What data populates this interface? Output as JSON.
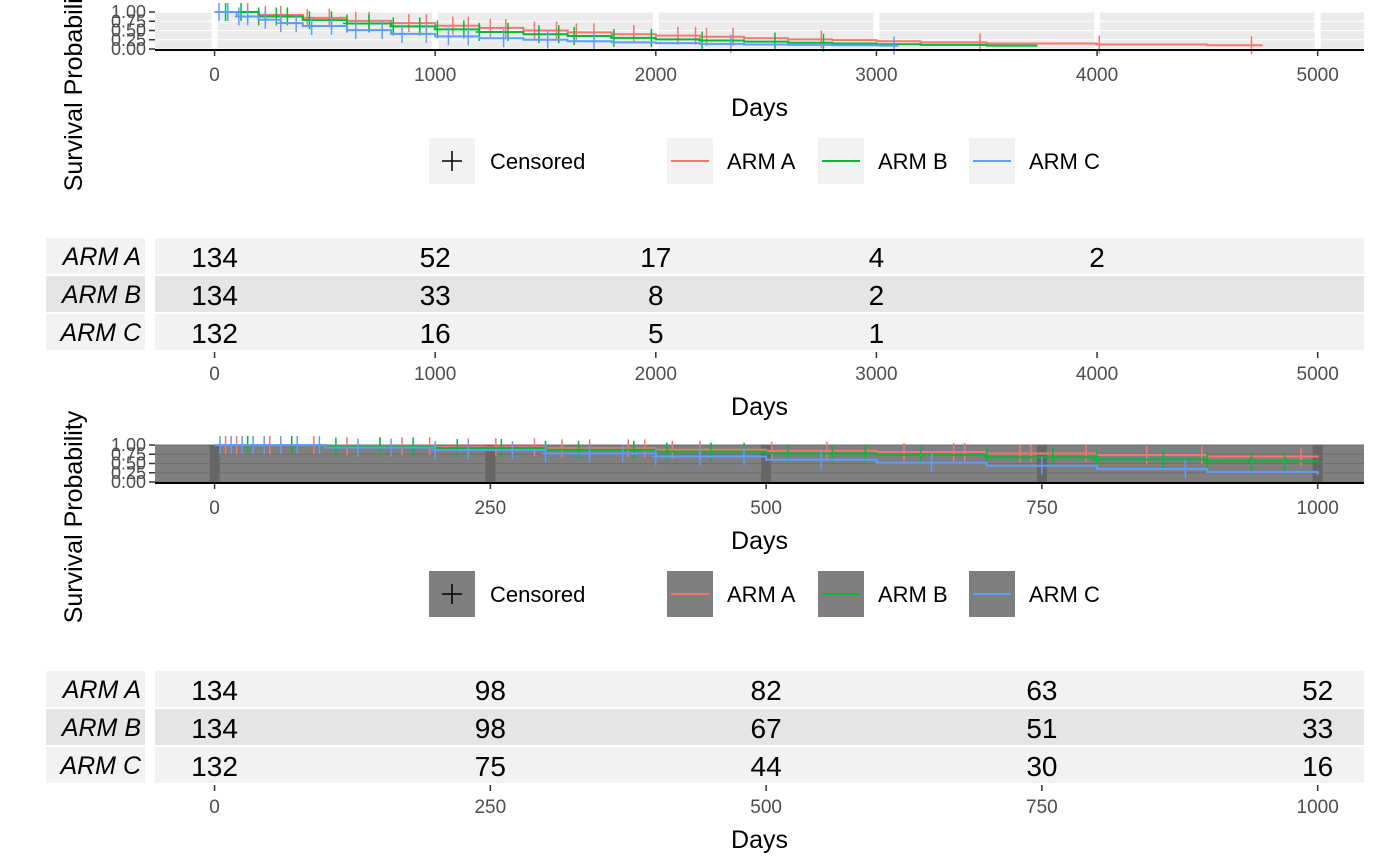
{
  "chart_data": [
    {
      "type": "line",
      "subtype": "kaplan-meier",
      "title": "",
      "xlabel": "Days",
      "ylabel": "Survival Probability",
      "xlim": [
        -270,
        5210
      ],
      "ylim": [
        0,
        1
      ],
      "xticks": [
        0,
        1000,
        2000,
        3000,
        4000,
        5000
      ],
      "yticks": [
        "0.00",
        "0.25",
        "0.50",
        "0.75",
        "1.00"
      ],
      "theme": "light",
      "grid": true,
      "legend": {
        "position": "bottom",
        "censored_label": "Censored",
        "censored_symbol": "+",
        "entries": [
          "ARM A",
          "ARM B",
          "ARM C"
        ]
      },
      "series": [
        {
          "name": "ARM A",
          "color": "#F8766D",
          "x": [
            0,
            200,
            400,
            600,
            800,
            1000,
            1200,
            1400,
            1600,
            1800,
            2000,
            2200,
            2400,
            2600,
            2800,
            3000,
            3200,
            3500,
            4000,
            4500,
            4750
          ],
          "y": [
            1.0,
            0.92,
            0.84,
            0.76,
            0.7,
            0.63,
            0.57,
            0.5,
            0.45,
            0.4,
            0.36,
            0.33,
            0.29,
            0.26,
            0.24,
            0.21,
            0.18,
            0.15,
            0.12,
            0.1,
            0.1
          ],
          "censored_x": [
            150,
            230,
            300,
            420,
            520,
            640,
            700,
            880,
            960,
            1080,
            1150,
            1250,
            1320,
            1450,
            1550,
            1640,
            1720,
            1900,
            2100,
            2180,
            2230,
            2350,
            2750,
            3470,
            4010,
            4700
          ]
        },
        {
          "name": "ARM B",
          "color": "#00BA38",
          "x": [
            0,
            200,
            400,
            600,
            800,
            1000,
            1200,
            1400,
            1600,
            1800,
            2000,
            2200,
            2400,
            2600,
            2800,
            3000,
            3200,
            3500,
            3730
          ],
          "y": [
            1.0,
            0.88,
            0.78,
            0.69,
            0.61,
            0.53,
            0.46,
            0.4,
            0.35,
            0.3,
            0.26,
            0.23,
            0.2,
            0.17,
            0.15,
            0.13,
            0.11,
            0.09,
            0.09
          ],
          "censored_x": [
            50,
            120,
            200,
            280,
            330,
            430,
            530,
            600,
            700,
            810,
            930,
            1010,
            1130,
            1200,
            1330,
            1470,
            1560,
            1630,
            1810,
            1980,
            2210,
            2540,
            2760
          ]
        },
        {
          "name": "ARM C",
          "color": "#619CFF",
          "x": [
            0,
            100,
            200,
            300,
            400,
            600,
            800,
            1000,
            1200,
            1400,
            1600,
            1800,
            2000,
            2200,
            2400,
            2600,
            2800,
            3000,
            3100
          ],
          "y": [
            1.0,
            0.88,
            0.79,
            0.7,
            0.62,
            0.51,
            0.41,
            0.34,
            0.29,
            0.25,
            0.21,
            0.18,
            0.16,
            0.14,
            0.12,
            0.11,
            0.1,
            0.09,
            0.09
          ],
          "censored_x": [
            20,
            60,
            110,
            150,
            230,
            300,
            370,
            440,
            530,
            640,
            760,
            850,
            960,
            1060,
            1150,
            1310,
            1510,
            1720,
            2340,
            3080
          ]
        }
      ]
    },
    {
      "type": "table",
      "subtype": "number-at-risk",
      "xlabel": "Days",
      "xlim": [
        -270,
        5210
      ],
      "xticks": [
        0,
        1000,
        2000,
        3000,
        4000,
        5000
      ],
      "rows": [
        {
          "name": "ARM A",
          "values": [
            "134",
            "52",
            "17",
            "4",
            "2",
            ""
          ]
        },
        {
          "name": "ARM B",
          "values": [
            "134",
            "33",
            "8",
            "2",
            "",
            ""
          ]
        },
        {
          "name": "ARM C",
          "values": [
            "132",
            "16",
            "5",
            "1",
            "",
            ""
          ]
        }
      ]
    },
    {
      "type": "line",
      "subtype": "kaplan-meier",
      "title": "",
      "xlabel": "Days",
      "ylabel": "Survival Probability",
      "xlim": [
        -54,
        1042
      ],
      "ylim": [
        0,
        1
      ],
      "xticks": [
        0,
        250,
        500,
        750,
        1000
      ],
      "yticks": [
        "0.00",
        "0.25",
        "0.50",
        "0.75",
        "1.00"
      ],
      "theme": "dark",
      "grid": true,
      "legend": {
        "position": "bottom",
        "censored_label": "Censored",
        "censored_symbol": "+",
        "entries": [
          "ARM A",
          "ARM B",
          "ARM C"
        ]
      },
      "series": [
        {
          "name": "ARM A",
          "color": "#F8766D",
          "x": [
            0,
            100,
            200,
            300,
            400,
            500,
            600,
            700,
            800,
            900,
            1000
          ],
          "y": [
            1.0,
            0.97,
            0.94,
            0.91,
            0.87,
            0.84,
            0.81,
            0.77,
            0.73,
            0.69,
            0.66
          ],
          "censored_x": [
            10,
            20,
            30,
            50,
            90,
            120,
            150,
            170,
            195,
            230,
            255,
            290,
            315,
            340,
            375,
            390,
            415,
            440,
            505,
            555,
            625,
            670,
            680,
            730,
            740,
            790,
            845,
            895,
            985
          ]
        },
        {
          "name": "ARM B",
          "color": "#00BA38",
          "x": [
            0,
            100,
            200,
            300,
            400,
            500,
            600,
            700,
            800,
            900,
            1000
          ],
          "y": [
            1.0,
            0.96,
            0.92,
            0.87,
            0.82,
            0.77,
            0.73,
            0.67,
            0.61,
            0.56,
            0.52
          ],
          "censored_x": [
            30,
            70,
            110,
            150,
            180,
            220,
            260,
            300,
            330,
            380,
            410,
            450,
            480,
            520,
            560,
            590,
            640,
            700,
            760,
            800,
            860,
            900,
            940,
            970
          ]
        },
        {
          "name": "ARM C",
          "color": "#619CFF",
          "x": [
            0,
            100,
            200,
            300,
            400,
            500,
            600,
            700,
            800,
            900,
            1000
          ],
          "y": [
            1.0,
            0.93,
            0.86,
            0.77,
            0.69,
            0.6,
            0.52,
            0.44,
            0.35,
            0.27,
            0.2
          ],
          "censored_x": [
            5,
            15,
            25,
            35,
            45,
            60,
            75,
            95,
            130,
            160,
            200,
            230,
            270,
            300,
            340,
            370,
            400,
            440,
            480,
            550,
            650,
            750,
            880
          ]
        }
      ]
    },
    {
      "type": "table",
      "subtype": "number-at-risk",
      "xlabel": "Days",
      "xlim": [
        -54,
        1042
      ],
      "xticks": [
        0,
        250,
        500,
        750,
        1000
      ],
      "rows": [
        {
          "name": "ARM A",
          "values": [
            "134",
            "98",
            "82",
            "63",
            "52"
          ]
        },
        {
          "name": "ARM B",
          "values": [
            "134",
            "98",
            "67",
            "51",
            "33"
          ]
        },
        {
          "name": "ARM C",
          "values": [
            "132",
            "75",
            "44",
            "30",
            "16"
          ]
        }
      ]
    }
  ]
}
